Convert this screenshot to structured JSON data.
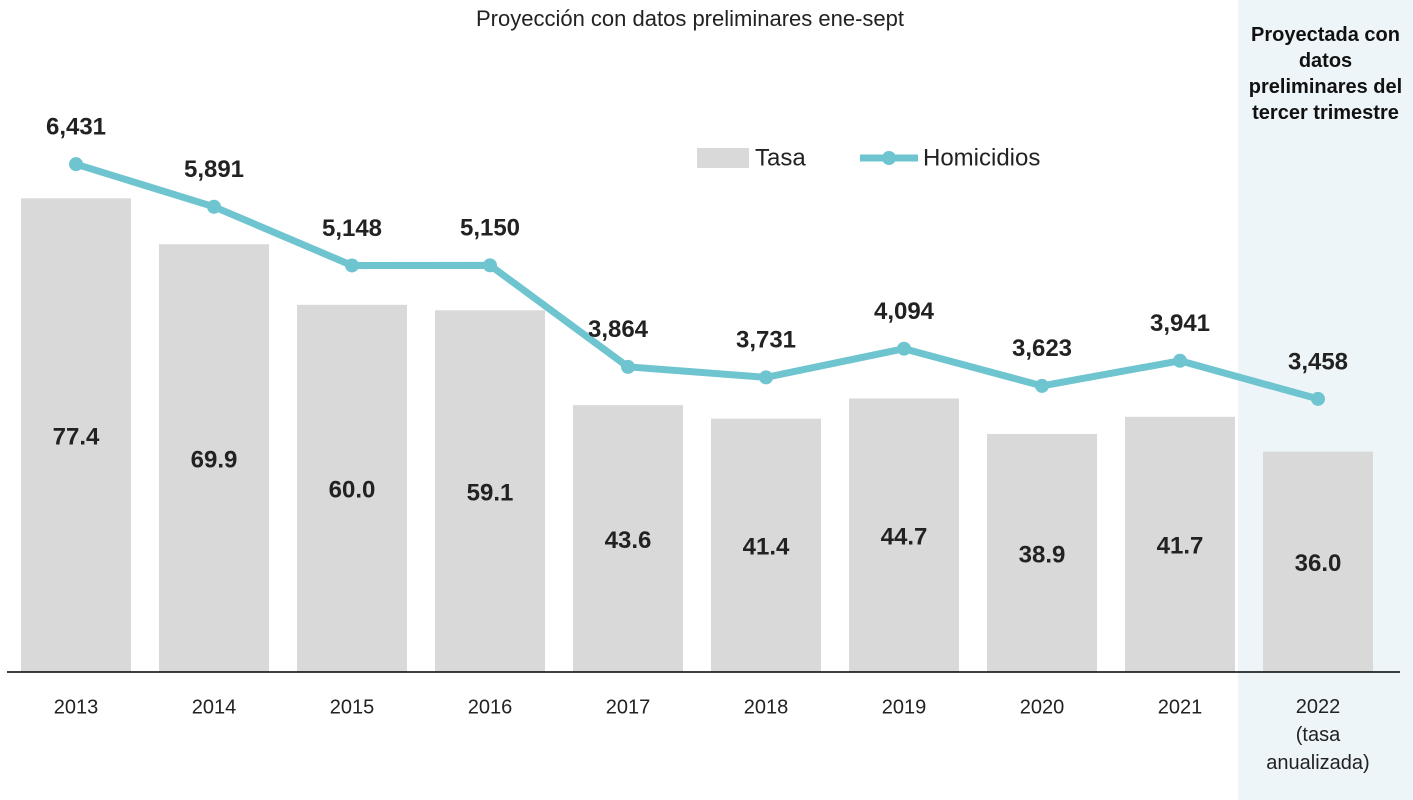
{
  "chart_data": {
    "type": "combo",
    "title": "Proyección con datos preliminares ene-sept",
    "annotation": "Proyectada con datos preliminares del tercer trimestre",
    "categories": [
      "2013",
      "2014",
      "2015",
      "2016",
      "2017",
      "2018",
      "2019",
      "2020",
      "2021",
      "2022 (tasa anualizada)"
    ],
    "series": [
      {
        "name": "Tasa",
        "type": "bar",
        "color": "#d9d9d9",
        "values": [
          77.4,
          69.9,
          60.0,
          59.1,
          43.6,
          41.4,
          44.7,
          38.9,
          41.7,
          36.0
        ],
        "value_labels": [
          "77.4",
          "69.9",
          "60.0",
          "59.1",
          "43.6",
          "41.4",
          "44.7",
          "38.9",
          "41.7",
          "36.0"
        ]
      },
      {
        "name": "Homicidios",
        "type": "line",
        "axis": "y2",
        "color": "#6ec4cf",
        "values": [
          6431,
          5891,
          5148,
          5150,
          3864,
          3731,
          4094,
          3623,
          3941,
          3458
        ],
        "value_labels": [
          "6,431",
          "5,891",
          "5,148",
          "5,150",
          "3,864",
          "3,731",
          "4,094",
          "3,623",
          "3,941",
          "3,458"
        ]
      }
    ],
    "ylim": [
      0,
      100
    ],
    "y2lim": [
      0,
      7750
    ]
  }
}
